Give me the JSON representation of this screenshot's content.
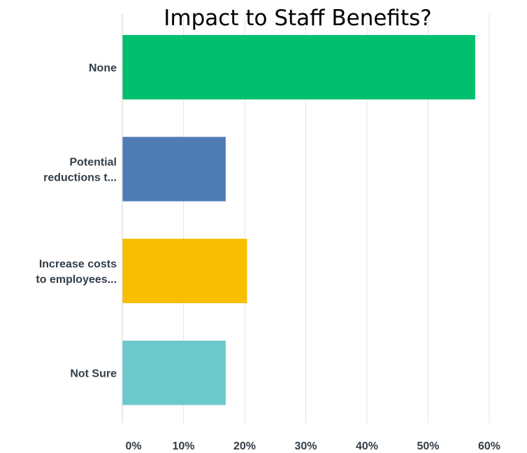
{
  "chart_data": {
    "type": "bar",
    "orientation": "horizontal",
    "title": "Impact to Staff Benefits?",
    "categories": [
      [
        "None"
      ],
      [
        "Potential",
        "reductions t..."
      ],
      [
        "Increase costs",
        "to employees..."
      ],
      [
        "Not Sure"
      ]
    ],
    "values": [
      57.7,
      16.9,
      20.4,
      16.9
    ],
    "colors": [
      "#00bf6f",
      "#507cb6",
      "#f9be00",
      "#6bc8cd"
    ],
    "xlim": [
      0,
      60
    ],
    "xticks": [
      0,
      10,
      20,
      30,
      40,
      50,
      60
    ],
    "xtick_labels": [
      "0%",
      "10%",
      "20%",
      "30%",
      "40%",
      "50%",
      "60%"
    ],
    "grid": true,
    "legend": "none"
  }
}
